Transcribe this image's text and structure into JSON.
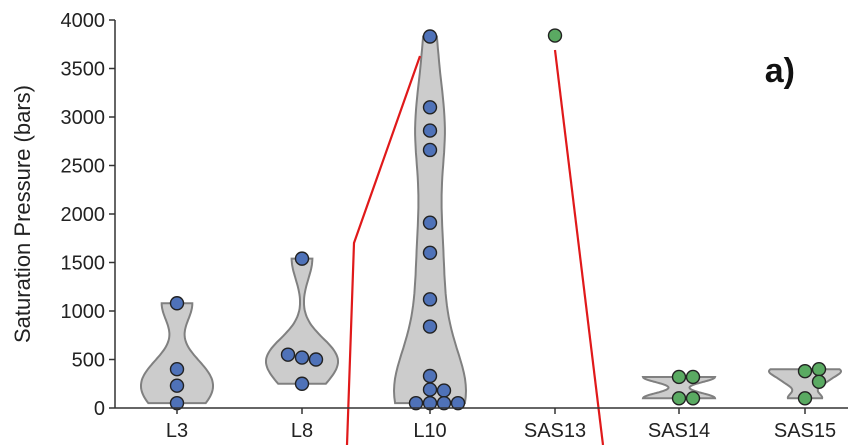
{
  "chart_data": {
    "type": "scatter",
    "subtype": "violin-strip",
    "panel_label": "a)",
    "title": "",
    "xlabel": "",
    "ylabel": "Saturation Pressure (bars)",
    "ylim": [
      0,
      4000
    ],
    "yticks": [
      0,
      500,
      1000,
      1500,
      2000,
      2500,
      3000,
      3500,
      4000
    ],
    "grid": false,
    "categories": [
      "L3",
      "L8",
      "L10",
      "SAS13",
      "SAS14",
      "SAS15"
    ],
    "series": [
      {
        "category": "L3",
        "color": "#4f72b8",
        "violin": true,
        "values": [
          1080,
          400,
          230,
          50
        ]
      },
      {
        "category": "L8",
        "color": "#4f72b8",
        "violin": true,
        "values": [
          1540,
          520,
          500,
          550,
          250
        ]
      },
      {
        "category": "L10",
        "color": "#4f72b8",
        "violin": true,
        "values": [
          3830,
          3100,
          2860,
          2660,
          1910,
          1600,
          1120,
          840,
          330,
          190,
          180,
          50,
          50,
          50,
          50
        ]
      },
      {
        "category": "SAS13",
        "color": "#5aaa62",
        "violin": false,
        "values": [
          3840
        ]
      },
      {
        "category": "SAS14",
        "color": "#5aaa62",
        "violin": true,
        "values": [
          320,
          320,
          100,
          100
        ]
      },
      {
        "category": "SAS15",
        "color": "#5aaa62",
        "violin": true,
        "values": [
          380,
          400,
          270,
          100
        ]
      }
    ],
    "colors": {
      "violin_fill": "#cccccc",
      "violin_stroke": "#808080",
      "axis": "#333333",
      "overlay_line": "#e0191a",
      "point_stroke": "#222222"
    }
  }
}
